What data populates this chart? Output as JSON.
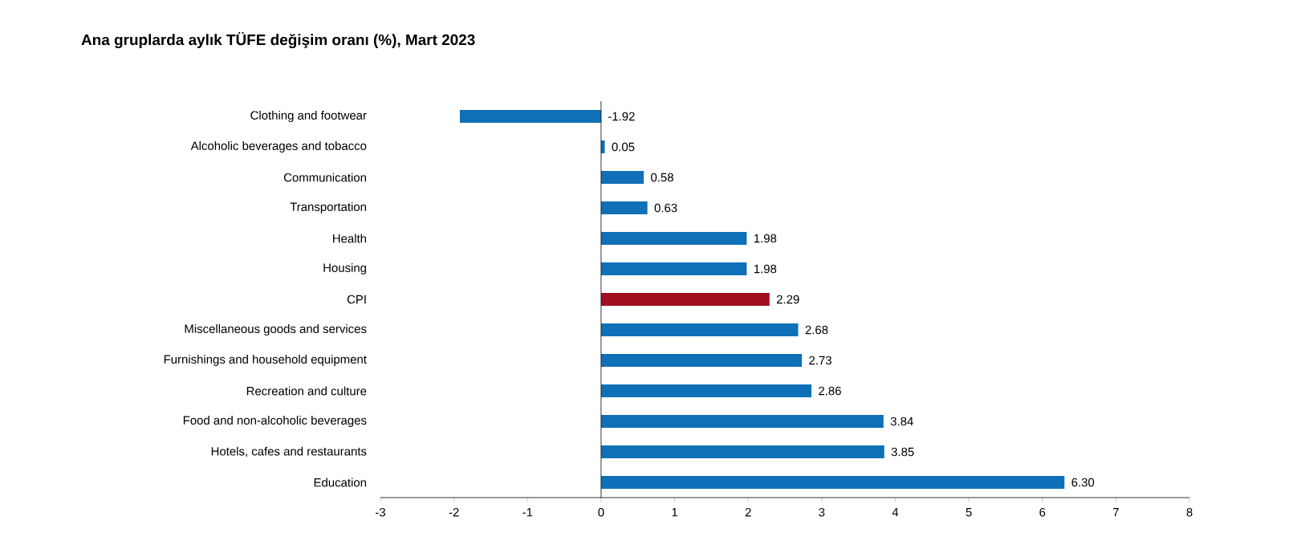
{
  "chart_data": {
    "type": "bar",
    "orientation": "horizontal",
    "title": "Ana gruplarda aylık TÜFE değişim oranı (%), Mart 2023",
    "categories": [
      "Clothing and footwear",
      "Alcoholic beverages and tobacco",
      "Communication",
      "Transportation",
      "Health",
      "Housing",
      "CPI",
      "Miscellaneous goods and services",
      "Furnishings and household equipment",
      "Recreation and culture",
      "Food and non-alcoholic beverages",
      "Hotels, cafes and restaurants",
      "Education"
    ],
    "values": [
      -1.92,
      0.05,
      0.58,
      0.63,
      1.98,
      1.98,
      2.29,
      2.68,
      2.73,
      2.86,
      3.84,
      3.85,
      6.3
    ],
    "value_labels": [
      "-1.92",
      "0.05",
      "0.58",
      "0.63",
      "1.98",
      "1.98",
      "2.29",
      "2.68",
      "2.73",
      "2.86",
      "3.84",
      "3.85",
      "6.30"
    ],
    "colors": [
      "#0f70b7",
      "#0f70b7",
      "#0f70b7",
      "#0f70b7",
      "#0f70b7",
      "#0f70b7",
      "#a20e22",
      "#0f70b7",
      "#0f70b7",
      "#0f70b7",
      "#0f70b7",
      "#0f70b7",
      "#0f70b7"
    ],
    "xlim": [
      -3,
      8
    ],
    "xticks": [
      -3,
      -2,
      -1,
      0,
      1,
      2,
      3,
      4,
      5,
      6,
      7,
      8
    ],
    "ref_lines": [
      {
        "axis": "x",
        "value": 0
      }
    ],
    "grid": false
  }
}
